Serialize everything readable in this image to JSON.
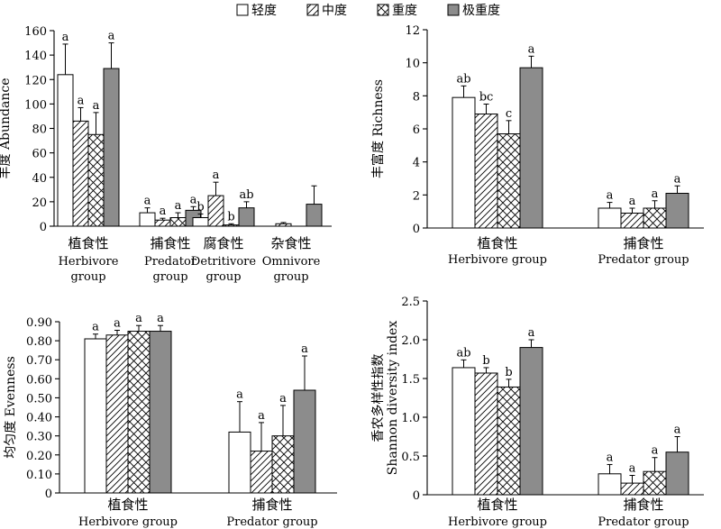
{
  "legend": {
    "items": [
      {
        "label": "轻度",
        "pattern": "white"
      },
      {
        "label": "中度",
        "pattern": "diagonal"
      },
      {
        "label": "重度",
        "pattern": "crosshatch"
      },
      {
        "label": "极重度",
        "pattern": "gray"
      }
    ]
  },
  "colors": {
    "gray_fill": "#8c8c8c",
    "stroke": "#000000",
    "white_fill": "#ffffff"
  },
  "chart_data": [
    {
      "type": "bar",
      "ylabel": "丰度 Abundance",
      "ylim": [
        0,
        160
      ],
      "yticks": [
        "0",
        "20",
        "40",
        "60",
        "80",
        "100",
        "120",
        "140",
        "160"
      ],
      "categories": [
        {
          "cn": "植食性",
          "en1": "Herbivore",
          "en2": "group"
        },
        {
          "cn": "捕食性",
          "en1": "Predator",
          "en2": "group"
        },
        {
          "cn": "腐食性",
          "en1": "Detritivore",
          "en2": "group"
        },
        {
          "cn": "杂食性",
          "en1": "Omnivore",
          "en2": "group"
        }
      ],
      "series": [
        {
          "name": "轻度",
          "values": [
            124,
            11,
            7,
            0
          ],
          "errors": [
            25,
            4,
            3,
            0
          ],
          "labels": [
            "a",
            "a",
            "b",
            ""
          ]
        },
        {
          "name": "中度",
          "values": [
            86,
            5,
            25,
            2
          ],
          "errors": [
            11,
            1.5,
            11,
            1
          ],
          "labels": [
            "a",
            "a",
            "a",
            ""
          ]
        },
        {
          "name": "重度",
          "values": [
            75,
            7,
            1,
            0
          ],
          "errors": [
            18,
            4,
            1,
            0
          ],
          "labels": [
            "a",
            "a",
            "b",
            ""
          ]
        },
        {
          "name": "极重度",
          "values": [
            129,
            13,
            15,
            18
          ],
          "errors": [
            21,
            3,
            5,
            15
          ],
          "labels": [
            "a",
            "a",
            "ab",
            ""
          ]
        }
      ]
    },
    {
      "type": "bar",
      "ylabel": "丰富度 Richness",
      "ylim": [
        0,
        12
      ],
      "yticks": [
        "0",
        "2",
        "4",
        "6",
        "8",
        "10",
        "12"
      ],
      "categories": [
        {
          "cn": "植食性",
          "en1": "Herbivore group",
          "en2": ""
        },
        {
          "cn": "捕食性",
          "en1": "Predator group",
          "en2": ""
        }
      ],
      "series": [
        {
          "name": "轻度",
          "values": [
            7.9,
            1.2
          ],
          "errors": [
            0.7,
            0.35
          ],
          "labels": [
            "ab",
            "a"
          ]
        },
        {
          "name": "中度",
          "values": [
            6.9,
            0.9
          ],
          "errors": [
            0.6,
            0.3
          ],
          "labels": [
            "bc",
            "a"
          ]
        },
        {
          "name": "重度",
          "values": [
            5.7,
            1.2
          ],
          "errors": [
            0.8,
            0.45
          ],
          "labels": [
            "c",
            "a"
          ]
        },
        {
          "name": "极重度",
          "values": [
            9.7,
            2.1
          ],
          "errors": [
            0.7,
            0.45
          ],
          "labels": [
            "a",
            "a"
          ]
        }
      ]
    },
    {
      "type": "bar",
      "ylabel": "均匀度 Evenness",
      "ylim": [
        0,
        0.9
      ],
      "yticks": [
        "0",
        "0.10",
        "0.20",
        "0.30",
        "0.40",
        "0.50",
        "0.60",
        "0.70",
        "0.80",
        "0.90"
      ],
      "categories": [
        {
          "cn": "植食性",
          "en1": "Herbivore group",
          "en2": ""
        },
        {
          "cn": "捕食性",
          "en1": "Predator group",
          "en2": ""
        }
      ],
      "series": [
        {
          "name": "轻度",
          "values": [
            0.81,
            0.32
          ],
          "errors": [
            0.025,
            0.16
          ],
          "labels": [
            "a",
            "a"
          ]
        },
        {
          "name": "中度",
          "values": [
            0.83,
            0.22
          ],
          "errors": [
            0.025,
            0.15
          ],
          "labels": [
            "a",
            "a"
          ]
        },
        {
          "name": "重度",
          "values": [
            0.85,
            0.3
          ],
          "errors": [
            0.03,
            0.16
          ],
          "labels": [
            "a",
            "a"
          ]
        },
        {
          "name": "极重度",
          "values": [
            0.85,
            0.54
          ],
          "errors": [
            0.03,
            0.18
          ],
          "labels": [
            "a",
            "a"
          ]
        }
      ]
    },
    {
      "type": "bar",
      "ylabel1": "香农多样性指数",
      "ylabel2": "Shannon diversity index",
      "ylim": [
        0,
        2.5
      ],
      "yticks": [
        "0",
        "0.5",
        "1.0",
        "1.5",
        "2.0",
        "2.5"
      ],
      "categories": [
        {
          "cn": "植食性",
          "en1": "Herbivore group",
          "en2": ""
        },
        {
          "cn": "捕食性",
          "en1": "Predator group",
          "en2": ""
        }
      ],
      "series": [
        {
          "name": "轻度",
          "values": [
            1.64,
            0.27
          ],
          "errors": [
            0.1,
            0.12
          ],
          "labels": [
            "ab",
            "a"
          ]
        },
        {
          "name": "中度",
          "values": [
            1.57,
            0.15
          ],
          "errors": [
            0.07,
            0.1
          ],
          "labels": [
            "b",
            "a"
          ]
        },
        {
          "name": "重度",
          "values": [
            1.39,
            0.3
          ],
          "errors": [
            0.1,
            0.18
          ],
          "labels": [
            "b",
            "a"
          ]
        },
        {
          "name": "极重度",
          "values": [
            1.9,
            0.55
          ],
          "errors": [
            0.1,
            0.2
          ],
          "labels": [
            "a",
            "a"
          ]
        }
      ]
    }
  ]
}
